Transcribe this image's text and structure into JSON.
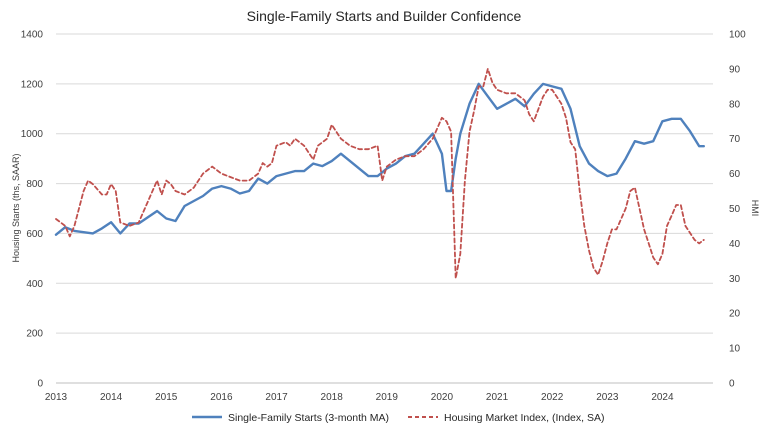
{
  "chart_data": {
    "type": "line",
    "title": "Single-Family Starts and Builder Confidence",
    "ylabel_left": "Housing Starts (ths, SAAR)",
    "ylabel_right": "HMI",
    "x_ticks": [
      "2013",
      "2014",
      "2015",
      "2016",
      "2017",
      "2018",
      "2019",
      "2020",
      "2021",
      "2022",
      "2023",
      "2024"
    ],
    "y_left_ticks": [
      "0",
      "200",
      "400",
      "600",
      "800",
      "1000",
      "1200",
      "1400"
    ],
    "y_right_ticks": [
      "0",
      "10",
      "20",
      "30",
      "40",
      "50",
      "60",
      "70",
      "80",
      "90",
      "100"
    ],
    "ylim_left": [
      0,
      1400
    ],
    "ylim_right": [
      0,
      100
    ],
    "xlim": [
      2013.0,
      2024.917
    ],
    "grid": "horizontal",
    "legend_position": "bottom",
    "series": [
      {
        "name": "Single-Family Starts (3-month MA)",
        "axis": "left",
        "color": "#4F81BD",
        "style": "solid",
        "x": [
          2013.0,
          2013.167,
          2013.333,
          2013.5,
          2013.667,
          2013.833,
          2014.0,
          2014.167,
          2014.333,
          2014.5,
          2014.667,
          2014.833,
          2015.0,
          2015.167,
          2015.333,
          2015.5,
          2015.667,
          2015.833,
          2016.0,
          2016.167,
          2016.333,
          2016.5,
          2016.667,
          2016.833,
          2017.0,
          2017.167,
          2017.333,
          2017.5,
          2017.667,
          2017.833,
          2018.0,
          2018.167,
          2018.333,
          2018.5,
          2018.667,
          2018.833,
          2019.0,
          2019.167,
          2019.333,
          2019.5,
          2019.667,
          2019.833,
          2020.0,
          2020.083,
          2020.167,
          2020.25,
          2020.333,
          2020.5,
          2020.667,
          2020.833,
          2021.0,
          2021.167,
          2021.333,
          2021.5,
          2021.667,
          2021.833,
          2022.0,
          2022.167,
          2022.333,
          2022.5,
          2022.667,
          2022.833,
          2023.0,
          2023.167,
          2023.333,
          2023.5,
          2023.667,
          2023.833,
          2024.0,
          2024.167,
          2024.333,
          2024.5,
          2024.667,
          2024.75
        ],
        "y": [
          595,
          625,
          610,
          605,
          600,
          620,
          645,
          600,
          640,
          640,
          665,
          690,
          660,
          650,
          710,
          730,
          750,
          780,
          790,
          780,
          760,
          770,
          820,
          800,
          830,
          840,
          850,
          850,
          880,
          870,
          890,
          920,
          890,
          860,
          830,
          830,
          860,
          880,
          910,
          920,
          960,
          1000,
          920,
          770,
          770,
          900,
          1000,
          1120,
          1200,
          1150,
          1100,
          1120,
          1140,
          1110,
          1160,
          1200,
          1190,
          1180,
          1100,
          950,
          880,
          850,
          830,
          840,
          900,
          970,
          960,
          970,
          1050,
          1060,
          1060,
          1010,
          950,
          950
        ]
      },
      {
        "name": "Housing Market Index, (Index, SA)",
        "axis": "right",
        "color": "#C0504D",
        "style": "dashed",
        "x": [
          2013.0,
          2013.167,
          2013.25,
          2013.333,
          2013.5,
          2013.583,
          2013.667,
          2013.833,
          2013.917,
          2014.0,
          2014.083,
          2014.167,
          2014.333,
          2014.5,
          2014.667,
          2014.75,
          2014.833,
          2014.917,
          2015.0,
          2015.083,
          2015.167,
          2015.333,
          2015.5,
          2015.667,
          2015.75,
          2015.833,
          2016.0,
          2016.167,
          2016.333,
          2016.5,
          2016.667,
          2016.75,
          2016.833,
          2016.917,
          2017.0,
          2017.167,
          2017.25,
          2017.333,
          2017.5,
          2017.667,
          2017.75,
          2017.917,
          2018.0,
          2018.167,
          2018.333,
          2018.5,
          2018.667,
          2018.833,
          2018.917,
          2019.0,
          2019.167,
          2019.333,
          2019.5,
          2019.667,
          2019.833,
          2020.0,
          2020.083,
          2020.167,
          2020.25,
          2020.333,
          2020.417,
          2020.5,
          2020.583,
          2020.667,
          2020.75,
          2020.833,
          2020.917,
          2021.0,
          2021.167,
          2021.333,
          2021.5,
          2021.583,
          2021.667,
          2021.833,
          2021.917,
          2022.0,
          2022.083,
          2022.167,
          2022.25,
          2022.333,
          2022.417,
          2022.5,
          2022.583,
          2022.667,
          2022.75,
          2022.833,
          2022.917,
          2023.0,
          2023.083,
          2023.167,
          2023.25,
          2023.333,
          2023.417,
          2023.5,
          2023.583,
          2023.667,
          2023.75,
          2023.833,
          2023.917,
          2024.0,
          2024.083,
          2024.167,
          2024.25,
          2024.333,
          2024.417,
          2024.5,
          2024.583,
          2024.667,
          2024.75
        ],
        "y": [
          47,
          45,
          42,
          45,
          55,
          58,
          57,
          54,
          54,
          57,
          55,
          46,
          45,
          46,
          52,
          55,
          58,
          54,
          58,
          57,
          55,
          54,
          56,
          60,
          61,
          62,
          60,
          59,
          58,
          58,
          60,
          63,
          62,
          63,
          68,
          69,
          68,
          70,
          68,
          64,
          68,
          70,
          74,
          70,
          68,
          67,
          67,
          68,
          58,
          62,
          64,
          65,
          65,
          67,
          70,
          76,
          75,
          72,
          30,
          37,
          58,
          72,
          78,
          85,
          85,
          90,
          86,
          84,
          83,
          83,
          81,
          77,
          75,
          82,
          84,
          84,
          82,
          80,
          76,
          69,
          67,
          55,
          45,
          38,
          33,
          31,
          35,
          40,
          44,
          44,
          47,
          50,
          55,
          56,
          50,
          44,
          40,
          36,
          34,
          37,
          45,
          48,
          51,
          51,
          45,
          43,
          41,
          40,
          41
        ]
      }
    ]
  }
}
